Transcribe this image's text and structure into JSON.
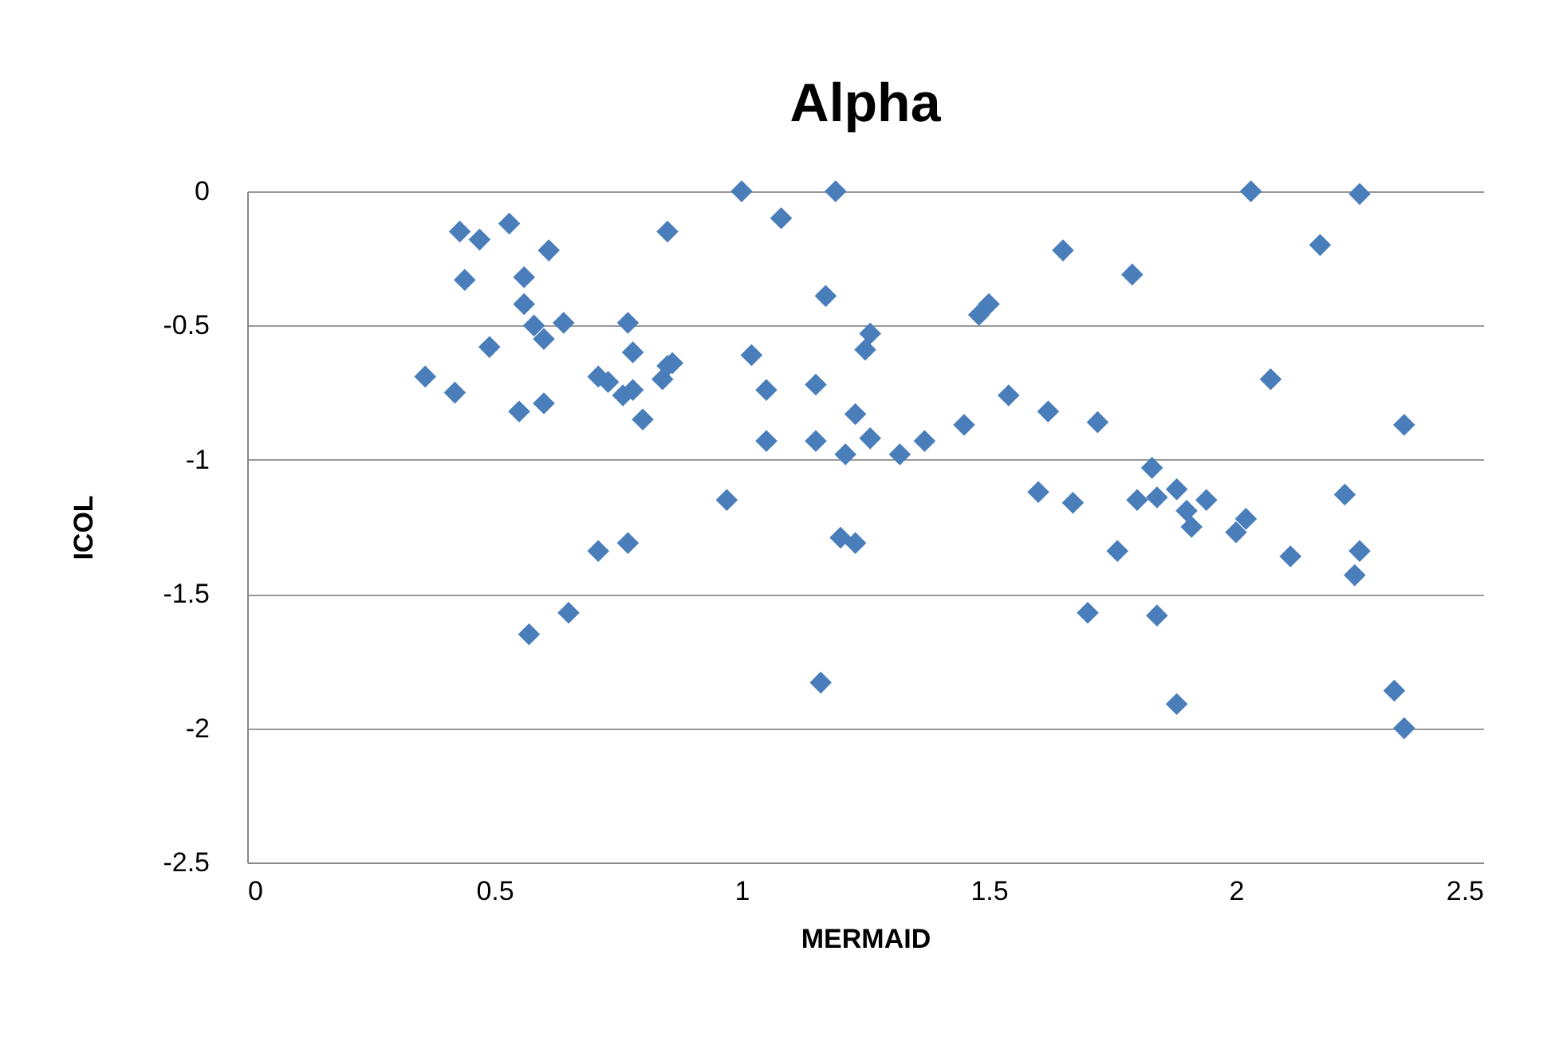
{
  "chart_data": {
    "type": "scatter",
    "title": "Alpha",
    "xlabel": "MERMAID",
    "ylabel": "ICOL",
    "x": [
      0.36,
      0.42,
      0.43,
      0.44,
      0.47,
      0.49,
      0.53,
      0.55,
      0.56,
      0.56,
      0.57,
      0.58,
      0.6,
      0.6,
      0.61,
      0.64,
      0.65,
      0.71,
      0.71,
      0.73,
      0.76,
      0.77,
      0.77,
      0.78,
      0.78,
      0.8,
      0.84,
      0.85,
      0.85,
      0.86,
      0.97,
      1.0,
      1.02,
      1.05,
      1.05,
      1.08,
      1.15,
      1.15,
      1.16,
      1.17,
      1.19,
      1.2,
      1.21,
      1.23,
      1.23,
      1.25,
      1.26,
      1.26,
      1.32,
      1.37,
      1.45,
      1.48,
      1.5,
      1.54,
      1.6,
      1.62,
      1.65,
      1.67,
      1.7,
      1.72,
      1.76,
      1.79,
      1.8,
      1.83,
      1.84,
      1.84,
      1.88,
      1.88,
      1.9,
      1.91,
      1.94,
      2.0,
      2.02,
      2.03,
      2.07,
      2.11,
      2.17,
      2.22,
      2.25,
      2.24,
      2.25,
      2.32,
      2.34,
      2.34
    ],
    "series": [
      {
        "color": "#4a7ebb",
        "values": [
          -0.69,
          -0.75,
          -0.15,
          -0.33,
          -0.18,
          -0.58,
          -0.12,
          -0.82,
          -0.32,
          -0.42,
          -1.65,
          -0.5,
          -0.55,
          -0.79,
          -0.22,
          -0.49,
          -1.57,
          -1.34,
          -0.69,
          -0.71,
          -0.76,
          -0.49,
          -1.31,
          -0.6,
          -0.74,
          -0.85,
          -0.7,
          -0.15,
          -0.65,
          -0.64,
          -1.15,
          0.0,
          -0.61,
          -0.74,
          -0.93,
          -0.1,
          -0.72,
          -0.93,
          -1.83,
          -0.39,
          0.0,
          -1.29,
          -0.98,
          -0.83,
          -1.31,
          -0.59,
          -0.53,
          -0.92,
          -0.98,
          -0.93,
          -0.87,
          -0.46,
          -0.42,
          -0.76,
          -1.12,
          -0.82,
          -0.22,
          -1.16,
          -1.57,
          -0.86,
          -1.34,
          -0.31,
          -1.15,
          -1.03,
          -1.14,
          -1.58,
          -1.11,
          -1.91,
          -1.19,
          -1.25,
          -1.15,
          -1.27,
          -1.22,
          0.0,
          -0.7,
          -1.36,
          -0.2,
          -1.13,
          -1.34,
          -1.43,
          -0.01,
          -1.86,
          -0.87,
          -2.0
        ]
      }
    ],
    "xlim": [
      0,
      2.5
    ],
    "xticks": [
      0,
      0.5,
      1,
      1.5,
      2,
      2.5
    ],
    "ylim": [
      -2.5,
      0
    ],
    "yticks": [
      -2.5,
      -2,
      -1.5,
      -1,
      -0.5,
      0
    ],
    "grid": "y",
    "legend": false,
    "marker": "diamond"
  }
}
